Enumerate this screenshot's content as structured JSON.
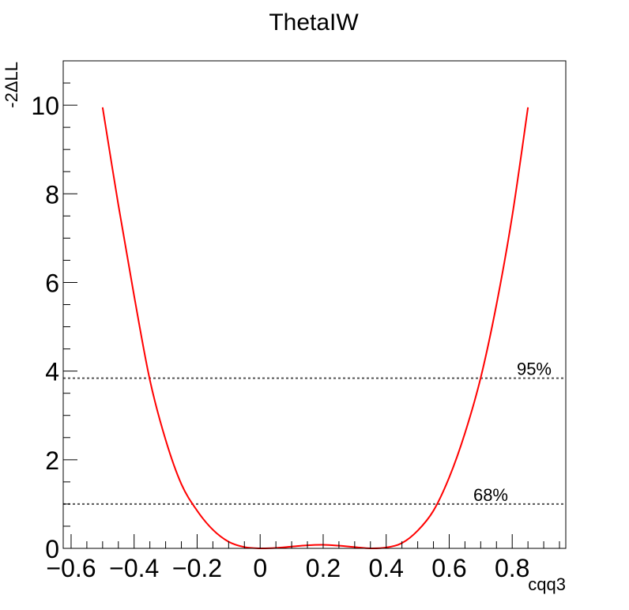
{
  "chart_data": {
    "type": "line",
    "title": "ThetaIW",
    "xlabel": "cqq3",
    "ylabel": "-2ΔLL",
    "xlim": [
      -0.625,
      0.97
    ],
    "ylim": [
      0,
      11
    ],
    "x_ticks": [
      -0.6,
      -0.4,
      -0.2,
      0,
      0.2,
      0.4,
      0.6,
      0.8
    ],
    "x_tick_labels": [
      "−0.6",
      "−0.4",
      "−0.2",
      "0",
      "0.2",
      "0.4",
      "0.6",
      "0.8"
    ],
    "y_ticks": [
      0,
      2,
      4,
      6,
      8,
      10
    ],
    "y_tick_labels": [
      "0",
      "2",
      "4",
      "6",
      "8",
      "10"
    ],
    "grid": false,
    "series": [
      {
        "color": "#ff0000",
        "x": [
          -0.5,
          -0.45,
          -0.4,
          -0.35,
          -0.3,
          -0.25,
          -0.2,
          -0.15,
          -0.1,
          -0.05,
          0.0,
          0.05,
          0.1,
          0.15,
          0.2,
          0.25,
          0.3,
          0.35,
          0.4,
          0.45,
          0.5,
          0.55,
          0.6,
          0.65,
          0.7,
          0.75,
          0.8,
          0.85
        ],
        "y": [
          9.95,
          7.75,
          5.7,
          3.8,
          2.45,
          1.45,
          0.85,
          0.42,
          0.15,
          0.03,
          0.0,
          0.01,
          0.04,
          0.07,
          0.08,
          0.06,
          0.03,
          0.0,
          0.02,
          0.12,
          0.4,
          0.85,
          1.6,
          2.6,
          3.85,
          5.5,
          7.5,
          9.95
        ]
      }
    ],
    "reference_lines": [
      {
        "y": 3.84,
        "label": "95%",
        "color": "#555555"
      },
      {
        "y": 1.0,
        "label": "68%",
        "color": "#555555"
      }
    ]
  }
}
